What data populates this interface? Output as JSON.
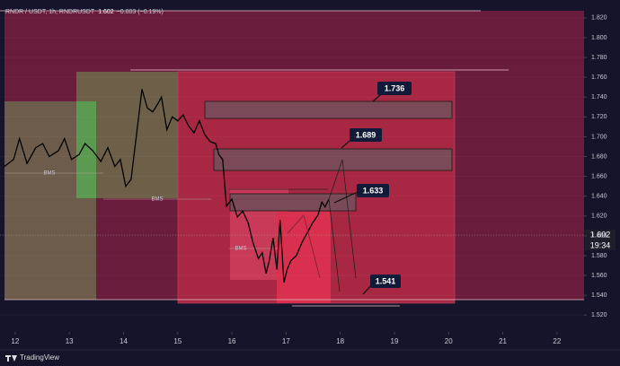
{
  "chart_data": {
    "type": "line",
    "symbol": "RNDR / USDT, 1h, RNDRUSDT",
    "last_price": "1.602",
    "change": "−0.003 (−0.19%)",
    "price_tag": "1.602",
    "countdown": "19:34",
    "brand": "TradingView",
    "structure_labels": [
      "BMS",
      "BMS",
      "BMS"
    ],
    "annotations": [
      "1.736",
      "1.689",
      "1.633",
      "1.541"
    ],
    "series": [
      {
        "color": "#000000",
        "x": [
          11.8,
          11.97,
          12.08,
          12.22,
          12.38,
          12.51,
          12.63,
          12.8,
          12.91,
          13.04,
          13.18,
          13.29,
          13.43,
          13.58,
          13.71,
          13.84,
          13.94,
          14.04,
          14.14,
          14.24,
          14.34,
          14.44,
          14.54,
          14.64,
          14.7,
          14.8,
          14.9,
          15.0,
          15.1,
          15.2,
          15.3,
          15.4,
          15.5,
          15.6,
          15.7,
          15.76,
          15.83,
          15.9,
          16.0,
          16.1,
          16.2,
          16.3,
          16.39,
          16.49,
          16.56,
          16.63,
          16.69,
          16.76,
          16.83,
          16.89,
          16.96,
          17.02,
          17.09,
          17.19,
          17.29,
          17.39,
          17.49,
          17.59,
          17.66,
          17.72,
          17.79
        ],
        "values": [
          1.67,
          1.677,
          1.698,
          1.673,
          1.689,
          1.693,
          1.68,
          1.686,
          1.698,
          1.677,
          1.682,
          1.693,
          1.686,
          1.675,
          1.689,
          1.67,
          1.677,
          1.65,
          1.657,
          1.702,
          1.748,
          1.729,
          1.725,
          1.734,
          1.74,
          1.707,
          1.72,
          1.716,
          1.722,
          1.711,
          1.704,
          1.716,
          1.702,
          1.695,
          1.693,
          1.682,
          1.677,
          1.63,
          1.637,
          1.619,
          1.625,
          1.613,
          1.593,
          1.577,
          1.583,
          1.562,
          1.575,
          1.598,
          1.566,
          1.616,
          1.553,
          1.566,
          1.575,
          1.58,
          1.593,
          1.603,
          1.613,
          1.621,
          1.634,
          1.629,
          1.637
        ]
      }
    ],
    "xlim": [
      11.72,
      22.5
    ],
    "xticks": [
      12,
      13,
      14,
      15,
      16,
      17,
      18,
      19,
      20,
      21,
      22
    ],
    "ylim": [
      1.503,
      1.838
    ],
    "yticks": [
      {
        "value": 1.52,
        "label": "1.520"
      },
      {
        "value": 1.54,
        "label": "1.540"
      },
      {
        "value": 1.56,
        "label": "1.560"
      },
      {
        "value": 1.58,
        "label": "1.580"
      },
      {
        "value": 1.6,
        "label": "1.600"
      },
      {
        "value": 1.62,
        "label": "1.620"
      },
      {
        "value": 1.64,
        "label": "1.640"
      },
      {
        "value": 1.66,
        "label": "1.660"
      },
      {
        "value": 1.68,
        "label": "1.680"
      },
      {
        "value": 1.7,
        "label": "1.700"
      },
      {
        "value": 1.72,
        "label": "1.720"
      },
      {
        "value": 1.74,
        "label": "1.740"
      },
      {
        "value": 1.76,
        "label": "1.760"
      },
      {
        "value": 1.78,
        "label": "1.780"
      },
      {
        "value": 1.8,
        "label": "1.800"
      },
      {
        "value": 1.82,
        "label": "1.820"
      }
    ]
  }
}
